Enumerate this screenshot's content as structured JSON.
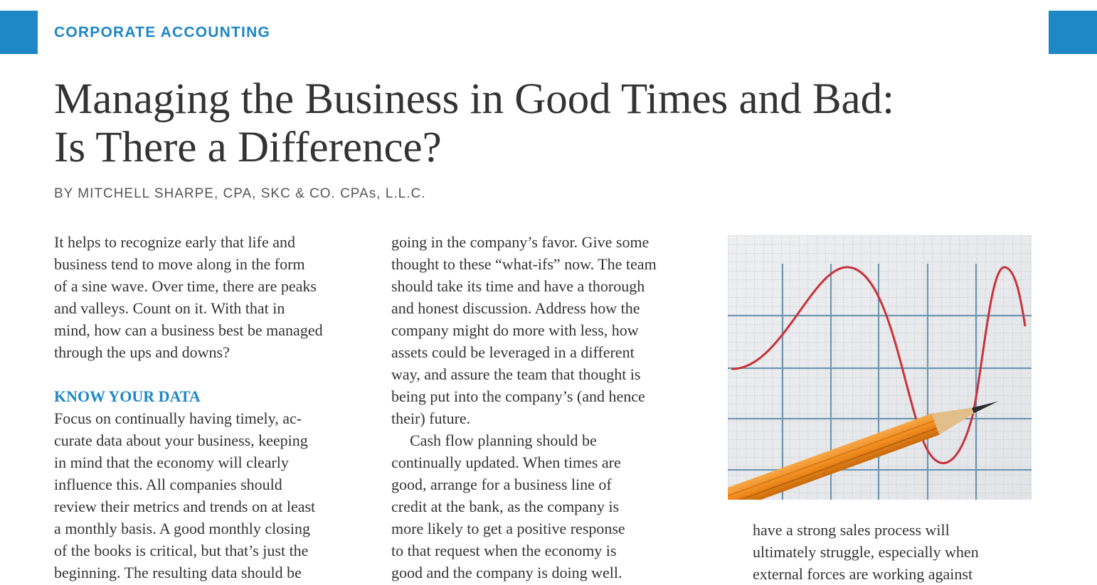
{
  "header": {
    "section_label": "CORPORATE ACCOUNTING",
    "accent_color": "#1e87c6"
  },
  "article": {
    "title_line1": "Managing the Business in Good Times and Bad:",
    "title_line2": "Is There a Difference?",
    "byline": "BY MITCHELL SHARPE, CPA, SKC & CO. CPAs, L.L.C."
  },
  "column1": {
    "intro": [
      "It helps to recognize early that life and",
      "business tend to move along in the form",
      "of a sine wave.  Over time, there are peaks",
      "and valleys. Count on it. With that in",
      "mind, how can a business best be managed",
      "through the ups and downs?"
    ],
    "subhead": "KNOW YOUR DATA",
    "body": [
      "Focus on continually having timely, ac-",
      "curate data about your business, keeping",
      "in mind that the economy will clearly",
      "influence this. All companies should",
      "review their metrics and trends on at least",
      "a monthly basis. A good monthly closing",
      "of the books is critical, but that’s just the",
      "beginning. The resulting data should be"
    ]
  },
  "column2": {
    "para1": [
      "going in the company’s favor. Give some",
      "thought to these “what-ifs” now. The team",
      "should take its time and have a thorough",
      "and honest discussion. Address how the",
      "company might do more with less, how",
      "assets could be leveraged in a different",
      "way, and assure the team that thought is",
      "being put into the company’s (and hence",
      "their) future."
    ],
    "para2": [
      "Cash flow planning should be",
      "continually updated. When times are",
      "good, arrange for a business line of",
      "credit at the bank, as the company is",
      "more likely to get a positive response",
      "to that request when the economy is",
      "good and the company is doing well."
    ]
  },
  "column3": {
    "lines": [
      "have a strong sales process will",
      "ultimately struggle, especially when",
      "external forces are working against"
    ]
  },
  "illustration": {
    "subject": "graph-paper-sine-wave-with-pencil",
    "curve_color": "#c8323a",
    "pencil_color": "#f08c1e"
  }
}
